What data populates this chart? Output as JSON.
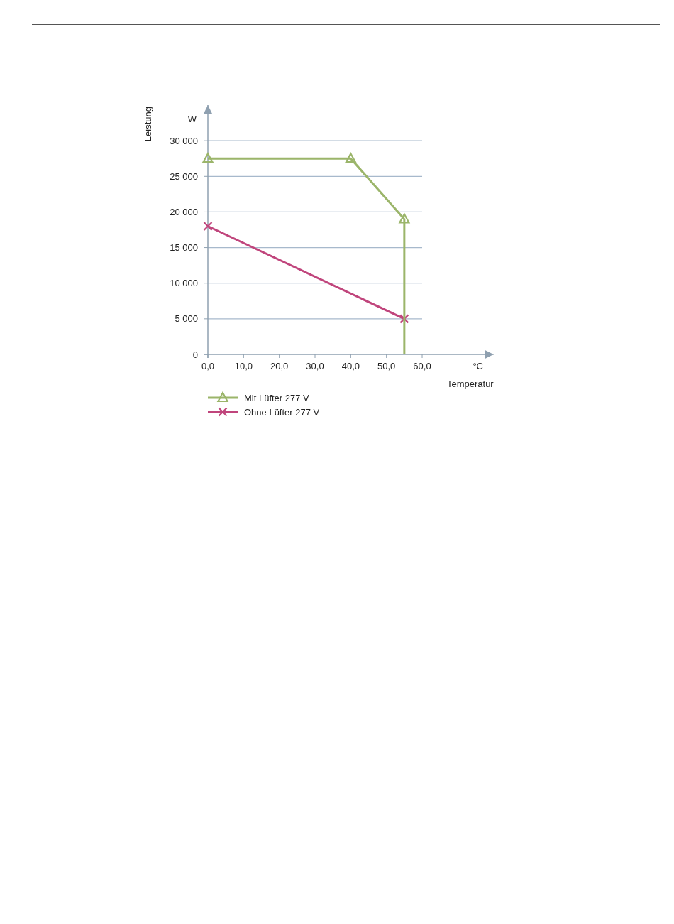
{
  "chart_data": {
    "type": "line",
    "xlabel": "Temperatur",
    "ylabel": "Leistung",
    "annotations": [
      "W",
      "°C"
    ],
    "xlim": [
      0,
      80
    ],
    "xticks": [
      {
        "value": 0,
        "label": "0,0"
      },
      {
        "value": 10,
        "label": "10,0"
      },
      {
        "value": 20,
        "label": "20,0"
      },
      {
        "value": 30,
        "label": "30,0"
      },
      {
        "value": 40,
        "label": "40,0"
      },
      {
        "value": 50,
        "label": "50,0"
      },
      {
        "value": 60,
        "label": "60,0"
      }
    ],
    "ylim": [
      0,
      35000
    ],
    "yticks": [
      0,
      {
        "value": 5000,
        "label": "5 000"
      },
      {
        "value": 10000,
        "label": "10 000"
      },
      {
        "value": 15000,
        "label": "15 000"
      },
      {
        "value": 20000,
        "label": "20 000"
      },
      {
        "value": 25000,
        "label": "25 000"
      },
      {
        "value": 30000,
        "label": "30 000"
      }
    ],
    "grid": "y",
    "legend": "bottom",
    "series": [
      {
        "name": "Mit Lüfter 277 V",
        "color": "#9bb56a",
        "marker": "triangle",
        "x": [
          0,
          40,
          55
        ],
        "values": [
          27500,
          27500,
          19000
        ]
      },
      {
        "name": "Ohne Lüfter 277 V",
        "color": "#c0457c",
        "marker": "cross",
        "x": [
          0,
          55
        ],
        "values": [
          18000,
          5000
        ]
      },
      {
        "color": "#9bb56a",
        "marker": "none",
        "x": [
          55,
          55
        ],
        "values": [
          19000,
          0
        ]
      }
    ]
  }
}
